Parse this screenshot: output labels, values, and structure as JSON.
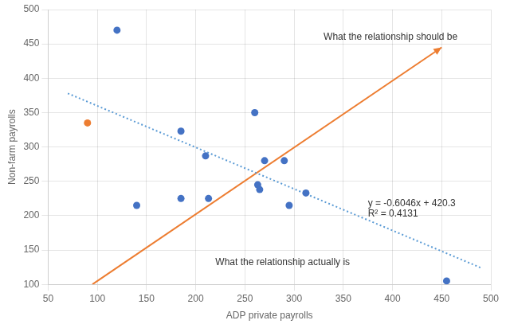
{
  "chart_data": {
    "type": "scatter",
    "x_label": "ADP private payrolls",
    "y_label": "Non-farm payrolls",
    "xlim": [
      50,
      500
    ],
    "ylim": [
      100,
      500
    ],
    "xticks": [
      50,
      100,
      150,
      200,
      250,
      300,
      350,
      400,
      450,
      500
    ],
    "yticks": [
      100,
      150,
      200,
      250,
      300,
      350,
      400,
      450,
      500
    ],
    "grid": true,
    "series": [
      {
        "color": "#4472C4",
        "x": [
          120,
          140,
          185,
          185,
          210,
          213,
          260,
          263,
          265,
          270,
          290,
          295,
          312,
          455
        ],
        "values": [
          470,
          215,
          225,
          323,
          287,
          225,
          350,
          245,
          238,
          280,
          280,
          215,
          233,
          105
        ]
      },
      {
        "color": "#ED7D31",
        "x": [
          90
        ],
        "values": [
          335
        ]
      },
      {
        "type": "line",
        "line_style": "dotted",
        "color": "#5B9BD5",
        "x": [
          70,
          490
        ],
        "values": [
          377.978,
          124.046
        ]
      },
      {
        "type": "line",
        "line_style": "solid",
        "marker": "arrow",
        "color": "#ED7D31",
        "x": [
          95,
          450
        ],
        "values": [
          100,
          445
        ]
      }
    ],
    "annotations": [
      {
        "text": "y = -0.6046x + 420.3",
        "x": 375,
        "y": 218
      },
      {
        "text": "R² = 0.4131",
        "x": 375,
        "y": 202
      },
      {
        "text": "What the relationship should be",
        "x": 330,
        "y": 460
      },
      {
        "text": "What the relationship actually is",
        "x": 220,
        "y": 132
      }
    ]
  }
}
